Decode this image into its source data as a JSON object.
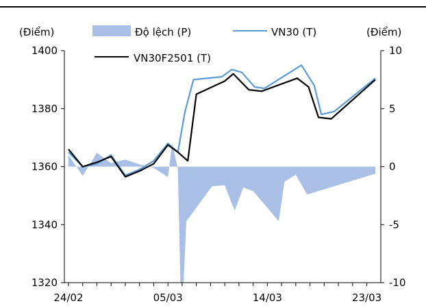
{
  "chart_data": {
    "type": "area+line",
    "left_unit_label": "(Điểm)",
    "right_unit_label": "(Điểm)",
    "left_axis": {
      "ylim": [
        1320,
        1400
      ],
      "ticks": [
        1320,
        1340,
        1360,
        1380,
        1400
      ]
    },
    "right_axis": {
      "ylim": [
        -10,
        10
      ],
      "ticks": [
        -10,
        -5,
        0,
        5,
        10
      ]
    },
    "x_tick_labels": [
      {
        "index": 0,
        "label": "24/02"
      },
      {
        "index": 7,
        "label": "05/03"
      },
      {
        "index": 14,
        "label": "14/03"
      },
      {
        "index": 21,
        "label": "23/03"
      }
    ],
    "legend": [
      {
        "key": "spread",
        "label": "Độ lệch (P)",
        "color": "#a9bfe6",
        "kind": "area"
      },
      {
        "key": "vn30",
        "label": "VN30 (T)",
        "color": "#5b9bd5",
        "kind": "line"
      },
      {
        "key": "future",
        "label": "VN30F2501 (T)",
        "color": "#000000",
        "kind": "line"
      }
    ],
    "series": [
      {
        "name": "Độ lệch (P)",
        "axis": "right",
        "color": "#a9bfe6",
        "values": [
          {
            "i": 0,
            "v": 1.0
          },
          {
            "i": 1,
            "v": -0.8
          },
          {
            "i": 2,
            "v": 1.2
          },
          {
            "i": 3,
            "v": 0.3
          },
          {
            "i": 4,
            "v": 0.6
          },
          {
            "i": 5,
            "v": 0.2
          },
          {
            "i": 6,
            "v": -0.1
          },
          {
            "i": 7,
            "v": -0.9
          },
          {
            "i": 7.3,
            "v": 2.0
          },
          {
            "i": 7.7,
            "v": -0.2
          },
          {
            "i": 7.88,
            "v": -10.0
          },
          {
            "i": 8.1,
            "v": -10.0
          },
          {
            "i": 8.3,
            "v": -4.7
          },
          {
            "i": 10.1,
            "v": -1.7
          },
          {
            "i": 11,
            "v": -1.6
          },
          {
            "i": 11.7,
            "v": -3.8
          },
          {
            "i": 12.3,
            "v": -1.8
          },
          {
            "i": 13.0,
            "v": -2.1
          },
          {
            "i": 14.8,
            "v": -4.7
          },
          {
            "i": 15.2,
            "v": -1.3
          },
          {
            "i": 16.0,
            "v": -0.7
          },
          {
            "i": 16.8,
            "v": -2.4
          },
          {
            "i": 21.6,
            "v": -0.6
          }
        ]
      },
      {
        "name": "VN30 (T)",
        "axis": "left",
        "color": "#5b9bd5",
        "values": [
          {
            "i": 0,
            "v": 1365
          },
          {
            "i": 1,
            "v": 1360
          },
          {
            "i": 2,
            "v": 1361
          },
          {
            "i": 3,
            "v": 1364
          },
          {
            "i": 4,
            "v": 1357
          },
          {
            "i": 5,
            "v": 1359
          },
          {
            "i": 6,
            "v": 1362
          },
          {
            "i": 7,
            "v": 1368
          },
          {
            "i": 7.7,
            "v": 1365
          },
          {
            "i": 8.2,
            "v": 1379
          },
          {
            "i": 8.8,
            "v": 1390
          },
          {
            "i": 10.8,
            "v": 1391
          },
          {
            "i": 11.5,
            "v": 1393.5
          },
          {
            "i": 12.2,
            "v": 1392.5
          },
          {
            "i": 13.1,
            "v": 1387.5
          },
          {
            "i": 13.8,
            "v": 1387
          },
          {
            "i": 16.4,
            "v": 1395
          },
          {
            "i": 17.3,
            "v": 1388
          },
          {
            "i": 17.8,
            "v": 1378
          },
          {
            "i": 18.7,
            "v": 1379
          },
          {
            "i": 21.6,
            "v": 1390.5
          }
        ]
      },
      {
        "name": "VN30F2501 (T)",
        "axis": "left",
        "color": "#000000",
        "values": [
          {
            "i": 0,
            "v": 1366
          },
          {
            "i": 1,
            "v": 1360
          },
          {
            "i": 2,
            "v": 1361.5
          },
          {
            "i": 3,
            "v": 1363.5
          },
          {
            "i": 4,
            "v": 1356.5
          },
          {
            "i": 5,
            "v": 1358.5
          },
          {
            "i": 6,
            "v": 1361
          },
          {
            "i": 7,
            "v": 1367.5
          },
          {
            "i": 7.7,
            "v": 1365
          },
          {
            "i": 8.4,
            "v": 1362
          },
          {
            "i": 9.0,
            "v": 1385
          },
          {
            "i": 11.0,
            "v": 1389.5
          },
          {
            "i": 11.6,
            "v": 1392
          },
          {
            "i": 12.7,
            "v": 1386.5
          },
          {
            "i": 13.6,
            "v": 1386
          },
          {
            "i": 16.1,
            "v": 1390.5
          },
          {
            "i": 16.9,
            "v": 1387.5
          },
          {
            "i": 17.6,
            "v": 1377
          },
          {
            "i": 18.5,
            "v": 1376.5
          },
          {
            "i": 21.6,
            "v": 1390
          }
        ]
      }
    ]
  }
}
